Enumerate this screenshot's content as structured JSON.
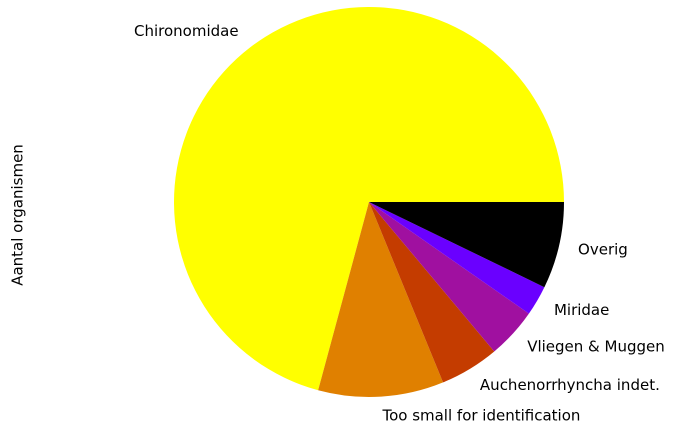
{
  "chart_data": {
    "type": "pie",
    "ylabel": "Aantal organismen",
    "categories": [
      "Chironomidae",
      "Too small for identification",
      "Auchenorrhyncha indet.",
      "Vliegen & Muggen",
      "Miridae",
      "Overig"
    ],
    "values": [
      70.8,
      10.4,
      4.9,
      4.2,
      2.5,
      7.2
    ],
    "colors": [
      "#ffff00",
      "#e08000",
      "#c43c00",
      "#a010a0",
      "#6a00ff",
      "#000000"
    ],
    "startangle": 0
  }
}
